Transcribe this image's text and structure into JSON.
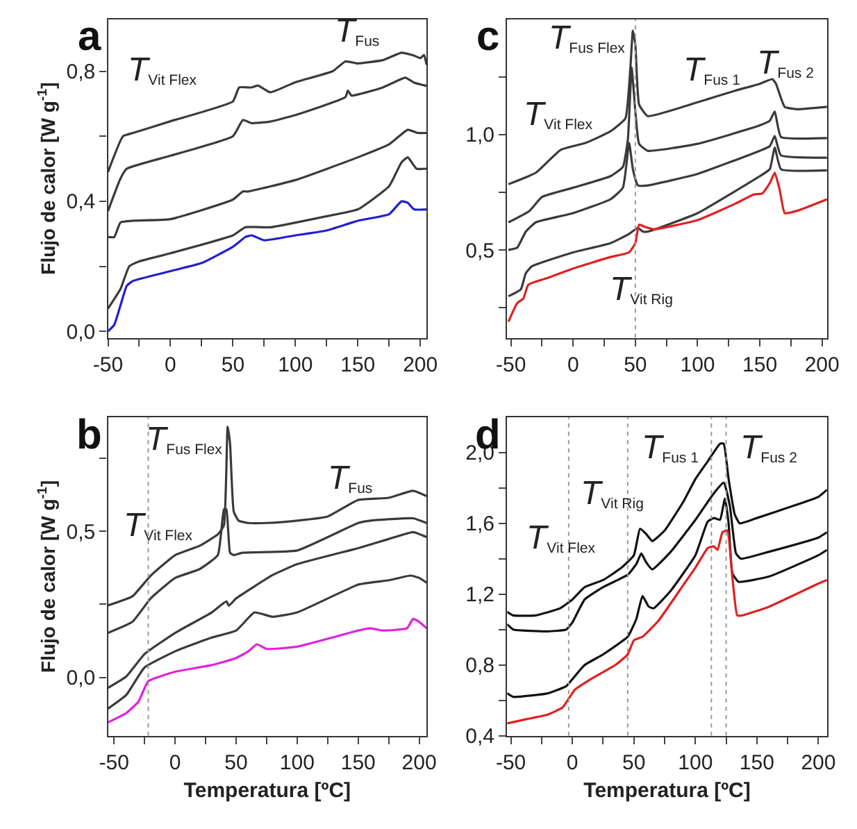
{
  "chart_data": [
    {
      "type": "line",
      "title": "a",
      "ylabel": "Flujo de calor [W g$^{-1}$]",
      "xlim": [
        -50,
        205
      ],
      "ylim": [
        -0.02,
        0.96
      ],
      "xticks": [
        -50,
        {
          "value": -25,
          "label": null
        },
        0,
        {
          "value": 25,
          "label": null
        },
        50,
        {
          "value": 75,
          "label": null
        },
        100,
        {
          "value": 125,
          "label": null
        },
        150,
        {
          "value": 175,
          "label": null
        },
        200
      ],
      "yticks": [
        {
          "value": 0,
          "label": "0,0"
        },
        {
          "value": 0.2,
          "label": null
        },
        {
          "value": 0.4,
          "label": "0,4"
        },
        {
          "value": 0.6,
          "label": null
        },
        {
          "value": 0.8,
          "label": "0,8"
        }
      ],
      "annotations": [
        "T$_{Vit Flex}$",
        "T$_{Fus}$"
      ],
      "series": [
        {
          "color": "#3a3a3a",
          "x": [
            -50,
            -38,
            -30,
            0,
            50,
            55,
            65,
            70,
            80,
            100,
            130,
            140,
            150,
            170,
            185,
            195,
            200,
            203,
            205
          ],
          "values": [
            0.49,
            0.6,
            0.61,
            0.646,
            0.707,
            0.75,
            0.75,
            0.756,
            0.735,
            0.766,
            0.8,
            0.83,
            0.824,
            0.834,
            0.857,
            0.848,
            0.84,
            0.85,
            0.82
          ]
        },
        {
          "color": "#3a3a3a",
          "x": [
            -50,
            -40,
            -35,
            0,
            50,
            58,
            65,
            80,
            100,
            140,
            142,
            145,
            170,
            188,
            195,
            205
          ],
          "values": [
            0.37,
            0.47,
            0.5,
            0.54,
            0.6,
            0.65,
            0.64,
            0.645,
            0.665,
            0.72,
            0.74,
            0.725,
            0.75,
            0.78,
            0.765,
            0.755
          ]
        },
        {
          "color": "#3a3a3a",
          "x": [
            -50,
            -45,
            -40,
            -30,
            0,
            50,
            58,
            62,
            100,
            150,
            175,
            190,
            198,
            205
          ],
          "values": [
            0.29,
            0.29,
            0.335,
            0.34,
            0.345,
            0.405,
            0.43,
            0.43,
            0.465,
            0.535,
            0.575,
            0.62,
            0.61,
            0.61
          ]
        },
        {
          "color": "#3a3a3a",
          "x": [
            -50,
            -40,
            -33,
            -25,
            0,
            50,
            60,
            80,
            120,
            150,
            175,
            185,
            190,
            197,
            205
          ],
          "values": [
            0.07,
            0.13,
            0.2,
            0.215,
            0.24,
            0.295,
            0.32,
            0.32,
            0.35,
            0.375,
            0.446,
            0.52,
            0.535,
            0.5,
            0.5
          ]
        },
        {
          "color": "#1f1fd0",
          "x": [
            -50,
            -45,
            -40,
            -35,
            -30,
            0,
            25,
            50,
            60,
            65,
            75,
            100,
            125,
            150,
            175,
            185,
            190,
            195,
            205
          ],
          "values": [
            0.0,
            0.02,
            0.08,
            0.14,
            0.155,
            0.185,
            0.21,
            0.26,
            0.29,
            0.295,
            0.28,
            0.295,
            0.31,
            0.34,
            0.36,
            0.4,
            0.395,
            0.375,
            0.375
          ]
        }
      ]
    },
    {
      "type": "line",
      "title": "c",
      "xlim": [
        -53,
        204
      ],
      "ylim": [
        0.12,
        1.5
      ],
      "xticks": [
        -50,
        {
          "value": -25,
          "label": null
        },
        0,
        {
          "value": 25,
          "label": null
        },
        50,
        {
          "value": 75,
          "label": null
        },
        100,
        {
          "value": 125,
          "label": null
        },
        150,
        {
          "value": 175,
          "label": null
        },
        200
      ],
      "yticks": [
        {
          "value": 0.25,
          "label": null
        },
        {
          "value": 0.5,
          "label": "0,5"
        },
        {
          "value": 0.75,
          "label": null
        },
        {
          "value": 1.0,
          "label": "1,0"
        },
        {
          "value": 1.25,
          "label": null
        }
      ],
      "annotations": [
        "T$_{Fus Flex}$",
        "T$_{Vit Flex}$",
        "T$_{Fus 1}$",
        "T$_{Fus 2}$",
        "T$_{Vit Rig}$"
      ],
      "ref_lines": [
        {
          "axis": "x",
          "value": 50,
          "color": "#9a9a9a",
          "line_style": "dotted"
        }
      ],
      "series": [
        {
          "color": "#3a3a3a",
          "x": [
            -52,
            -30,
            -10,
            10,
            30,
            42,
            46,
            48,
            50,
            53,
            60,
            100,
            130,
            150,
            160,
            163,
            170,
            180,
            204
          ],
          "values": [
            0.785,
            0.835,
            0.934,
            0.964,
            1.014,
            1.07,
            1.29,
            1.45,
            1.39,
            1.13,
            1.08,
            1.14,
            1.19,
            1.22,
            1.24,
            1.22,
            1.12,
            1.11,
            1.12
          ]
        },
        {
          "color": "#3a3a3a",
          "x": [
            -52,
            -35,
            -25,
            0,
            30,
            40,
            44,
            47,
            50,
            53,
            60,
            100,
            150,
            158,
            162,
            167,
            204
          ],
          "values": [
            0.62,
            0.67,
            0.73,
            0.77,
            0.82,
            0.86,
            0.98,
            1.29,
            1.1,
            0.96,
            0.93,
            0.96,
            1.04,
            1.06,
            1.1,
            0.99,
            0.985
          ]
        },
        {
          "color": "#3a3a3a",
          "x": [
            -52,
            -45,
            -38,
            -30,
            0,
            30,
            40,
            45,
            48,
            52,
            60,
            100,
            150,
            158,
            162,
            167,
            204
          ],
          "values": [
            0.5,
            0.51,
            0.58,
            0.62,
            0.66,
            0.72,
            0.77,
            0.964,
            0.85,
            0.78,
            0.78,
            0.83,
            0.93,
            0.95,
            0.994,
            0.91,
            0.9
          ]
        },
        {
          "color": "#3a3a3a",
          "x": [
            -52,
            -42,
            -38,
            -33,
            0,
            30,
            45,
            52,
            56,
            60,
            100,
            150,
            158,
            162,
            167,
            204
          ],
          "values": [
            0.3,
            0.33,
            0.4,
            0.43,
            0.49,
            0.53,
            0.57,
            0.596,
            0.58,
            0.58,
            0.66,
            0.82,
            0.85,
            0.944,
            0.85,
            0.845
          ]
        },
        {
          "color": "#e02020",
          "x": [
            -52,
            -45,
            -40,
            -36,
            -20,
            0,
            30,
            45,
            50,
            53,
            58,
            65,
            100,
            130,
            145,
            152,
            158,
            162,
            166,
            170,
            180,
            204
          ],
          "values": [
            0.19,
            0.27,
            0.29,
            0.35,
            0.38,
            0.42,
            0.47,
            0.49,
            0.53,
            0.61,
            0.6,
            0.59,
            0.63,
            0.7,
            0.74,
            0.745,
            0.79,
            0.835,
            0.76,
            0.66,
            0.67,
            0.72
          ]
        }
      ]
    },
    {
      "type": "line",
      "title": "b",
      "ylabel": "Flujo de calor [W g$^{-1}$]",
      "xlabel": "Temperatura [ºC]",
      "xlim": [
        -55,
        206
      ],
      "ylim": [
        -0.2,
        0.89
      ],
      "xticks": [
        -50,
        {
          "value": -25,
          "label": null
        },
        0,
        {
          "value": 25,
          "label": null
        },
        50,
        {
          "value": 75,
          "label": null
        },
        100,
        {
          "value": 125,
          "label": null
        },
        150,
        {
          "value": 175,
          "label": null
        },
        200
      ],
      "yticks": [
        {
          "value": 0,
          "label": "0,0"
        },
        {
          "value": 0.25,
          "label": null
        },
        {
          "value": 0.5,
          "label": "0,5"
        },
        {
          "value": 0.75,
          "label": null
        }
      ],
      "annotations": [
        "T$_{Fus Flex}$",
        "T$_{Vit Flex}$",
        "T$_{Fus}$"
      ],
      "ref_lines": [
        {
          "axis": "x",
          "value": -22,
          "color": "#9a9a9a",
          "line_style": "dotted"
        }
      ],
      "series": [
        {
          "color": "#3a3a3a",
          "x": [
            -55,
            -35,
            -20,
            0,
            20,
            35,
            40,
            43,
            45,
            48,
            52,
            60,
            75,
            100,
            125,
            150,
            175,
            195,
            206
          ],
          "values": [
            0.246,
            0.277,
            0.348,
            0.418,
            0.45,
            0.489,
            0.52,
            0.857,
            0.8,
            0.567,
            0.536,
            0.528,
            0.528,
            0.536,
            0.55,
            0.607,
            0.614,
            0.638,
            0.62
          ]
        },
        {
          "color": "#3a3a3a",
          "x": [
            -55,
            -35,
            -20,
            0,
            20,
            35,
            40,
            42,
            45,
            48,
            55,
            100,
            150,
            160,
            195,
            206
          ],
          "values": [
            0.152,
            0.19,
            0.27,
            0.34,
            0.37,
            0.418,
            0.575,
            0.575,
            0.426,
            0.418,
            0.426,
            0.434,
            0.528,
            0.536,
            0.544,
            0.528
          ]
        },
        {
          "color": "#3a3a3a",
          "x": [
            -55,
            -40,
            -25,
            0,
            30,
            42,
            44,
            50,
            80,
            100,
            150,
            175,
            195,
            206
          ],
          "values": [
            -0.036,
            0.003,
            0.08,
            0.152,
            0.222,
            0.26,
            0.245,
            0.27,
            0.35,
            0.387,
            0.442,
            0.473,
            0.497,
            0.48
          ]
        },
        {
          "color": "#3a3a3a",
          "x": [
            -55,
            -40,
            -25,
            0,
            30,
            50,
            65,
            80,
            100,
            150,
            175,
            193,
            200,
            206
          ],
          "values": [
            -0.107,
            -0.06,
            0.034,
            0.089,
            0.136,
            0.16,
            0.222,
            0.207,
            0.222,
            0.317,
            0.332,
            0.348,
            0.34,
            0.324
          ]
        },
        {
          "color": "#e020e0",
          "x": [
            -55,
            -40,
            -30,
            -22,
            0,
            30,
            50,
            60,
            67,
            75,
            100,
            150,
            160,
            170,
            190,
            195,
            200,
            206
          ],
          "values": [
            -0.154,
            -0.122,
            -0.083,
            -0.013,
            0.019,
            0.042,
            0.066,
            0.089,
            0.113,
            0.097,
            0.105,
            0.16,
            0.168,
            0.16,
            0.168,
            0.2,
            0.19,
            0.168
          ]
        }
      ]
    },
    {
      "type": "line",
      "title": "d",
      "xlabel": "Temperatura [ºC]",
      "xlim": [
        -53,
        207
      ],
      "ylim": [
        0.4,
        2.2
      ],
      "xticks": [
        -50,
        {
          "value": -25,
          "label": null
        },
        0,
        {
          "value": 25,
          "label": null
        },
        50,
        {
          "value": 75,
          "label": null
        },
        100,
        {
          "value": 125,
          "label": null
        },
        150,
        {
          "value": 175,
          "label": null
        },
        200
      ],
      "yticks": [
        {
          "value": 0.4,
          "label": "0,4"
        },
        {
          "value": 0.6,
          "label": null
        },
        {
          "value": 0.8,
          "label": "0,8"
        },
        {
          "value": 1.0,
          "label": null
        },
        {
          "value": 1.2,
          "label": "1,2"
        },
        {
          "value": 1.4,
          "label": null
        },
        {
          "value": 1.6,
          "label": "1,6"
        },
        {
          "value": 1.8,
          "label": null
        },
        {
          "value": 2.0,
          "label": "2,0"
        }
      ],
      "annotations": [
        "T$_{Vit Flex}$",
        "T$_{Vit Rig}$",
        "T$_{Fus 1}$",
        "T$_{Fus 2}$"
      ],
      "ref_lines": [
        {
          "axis": "x",
          "value": -3,
          "color": "#9a9a9a",
          "line_style": "dotted"
        },
        {
          "axis": "x",
          "value": 45,
          "color": "#9a9a9a",
          "line_style": "dotted"
        },
        {
          "axis": "x",
          "value": 113,
          "color": "#9a9a9a",
          "line_style": "dotted"
        },
        {
          "axis": "x",
          "value": 125,
          "color": "#9a9a9a",
          "line_style": "dotted"
        }
      ],
      "series": [
        {
          "color": "#111111",
          "x": [
            -53,
            -48,
            -30,
            -10,
            0,
            10,
            25,
            40,
            50,
            55,
            60,
            65,
            75,
            90,
            100,
            110,
            120,
            123,
            127,
            132,
            136,
            150,
            180,
            200,
            207
          ],
          "values": [
            1.1,
            1.08,
            1.08,
            1.12,
            1.17,
            1.24,
            1.28,
            1.35,
            1.42,
            1.57,
            1.54,
            1.5,
            1.56,
            1.72,
            1.85,
            1.95,
            2.05,
            2.05,
            1.85,
            1.65,
            1.6,
            1.63,
            1.7,
            1.75,
            1.79
          ]
        },
        {
          "color": "#111111",
          "x": [
            -53,
            -48,
            -20,
            -5,
            0,
            10,
            25,
            45,
            52,
            56,
            60,
            65,
            80,
            100,
            115,
            123,
            128,
            133,
            137,
            160,
            200,
            207
          ],
          "values": [
            1.03,
            1.0,
            0.99,
            1.0,
            1.04,
            1.17,
            1.24,
            1.31,
            1.37,
            1.43,
            1.38,
            1.34,
            1.44,
            1.62,
            1.77,
            1.83,
            1.7,
            1.43,
            1.4,
            1.44,
            1.52,
            1.55
          ]
        },
        {
          "color": "#111111",
          "x": [
            -53,
            -48,
            -20,
            -5,
            0,
            10,
            25,
            45,
            52,
            57,
            62,
            66,
            80,
            100,
            110,
            115,
            120,
            124,
            127,
            130,
            135,
            160,
            200,
            207
          ],
          "values": [
            0.64,
            0.62,
            0.64,
            0.68,
            0.72,
            0.8,
            0.86,
            0.96,
            1.06,
            1.19,
            1.13,
            1.12,
            1.22,
            1.42,
            1.61,
            1.63,
            1.62,
            1.74,
            1.6,
            1.32,
            1.27,
            1.3,
            1.42,
            1.45
          ]
        },
        {
          "color": "#e02020",
          "x": [
            -53,
            -40,
            -20,
            -8,
            -2,
            2,
            15,
            35,
            45,
            50,
            57,
            70,
            90,
            100,
            110,
            115,
            118,
            122,
            126,
            130,
            134,
            138,
            160,
            200,
            207
          ],
          "values": [
            0.47,
            0.49,
            0.52,
            0.56,
            0.62,
            0.66,
            0.72,
            0.8,
            0.86,
            0.94,
            0.96,
            1.05,
            1.25,
            1.35,
            1.46,
            1.47,
            1.45,
            1.55,
            1.56,
            1.3,
            1.08,
            1.08,
            1.13,
            1.26,
            1.28
          ]
        }
      ]
    }
  ]
}
